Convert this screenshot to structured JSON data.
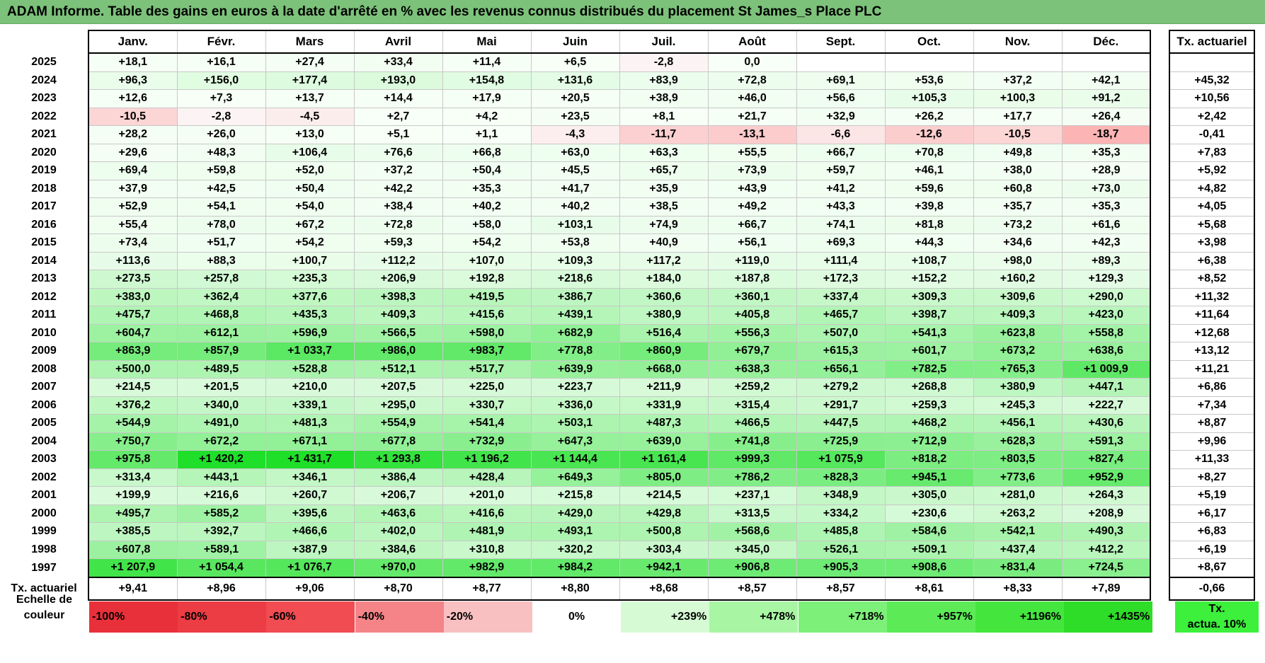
{
  "title": "ADAM Informe. Table des gains en euros à la date d'arrêté en % avec les revenus connus distribués du placement St James_s Place PLC",
  "months": [
    "Janv.",
    "Févr.",
    "Mars",
    "Avril",
    "Mai",
    "Juin",
    "Juil.",
    "Août",
    "Sept.",
    "Oct.",
    "Nov.",
    "Déc."
  ],
  "tx_header": "Tx. actuariel",
  "rows": [
    {
      "year": "2025",
      "vals": [
        "+18,1",
        "+16,1",
        "+27,4",
        "+33,4",
        "+11,4",
        "+6,5",
        "-2,8",
        "0,0",
        "",
        "",
        "",
        ""
      ],
      "tx": ""
    },
    {
      "year": "2024",
      "vals": [
        "+96,3",
        "+156,0",
        "+177,4",
        "+193,0",
        "+154,8",
        "+131,6",
        "+83,9",
        "+72,8",
        "+69,1",
        "+53,6",
        "+37,2",
        "+42,1"
      ],
      "tx": "+45,32"
    },
    {
      "year": "2023",
      "vals": [
        "+12,6",
        "+7,3",
        "+13,7",
        "+14,4",
        "+17,9",
        "+20,5",
        "+38,9",
        "+46,0",
        "+56,6",
        "+105,3",
        "+100,3",
        "+91,2"
      ],
      "tx": "+10,56"
    },
    {
      "year": "2022",
      "vals": [
        "-10,5",
        "-2,8",
        "-4,5",
        "+2,7",
        "+4,2",
        "+23,5",
        "+8,1",
        "+21,7",
        "+32,9",
        "+26,2",
        "+17,7",
        "+26,4"
      ],
      "tx": "+2,42"
    },
    {
      "year": "2021",
      "vals": [
        "+28,2",
        "+26,0",
        "+13,0",
        "+5,1",
        "+1,1",
        "-4,3",
        "-11,7",
        "-13,1",
        "-6,6",
        "-12,6",
        "-10,5",
        "-18,7"
      ],
      "tx": "-0,41"
    },
    {
      "year": "2020",
      "vals": [
        "+29,6",
        "+48,3",
        "+106,4",
        "+76,6",
        "+66,8",
        "+63,0",
        "+63,3",
        "+55,5",
        "+66,7",
        "+70,8",
        "+49,8",
        "+35,3"
      ],
      "tx": "+7,83"
    },
    {
      "year": "2019",
      "vals": [
        "+69,4",
        "+59,8",
        "+52,0",
        "+37,2",
        "+50,4",
        "+45,5",
        "+65,7",
        "+73,9",
        "+59,7",
        "+46,1",
        "+38,0",
        "+28,9"
      ],
      "tx": "+5,92"
    },
    {
      "year": "2018",
      "vals": [
        "+37,9",
        "+42,5",
        "+50,4",
        "+42,2",
        "+35,3",
        "+41,7",
        "+35,9",
        "+43,9",
        "+41,2",
        "+59,6",
        "+60,8",
        "+73,0"
      ],
      "tx": "+4,82"
    },
    {
      "year": "2017",
      "vals": [
        "+52,9",
        "+54,1",
        "+54,0",
        "+38,4",
        "+40,2",
        "+40,2",
        "+38,5",
        "+49,2",
        "+43,3",
        "+39,8",
        "+35,7",
        "+35,3"
      ],
      "tx": "+4,05"
    },
    {
      "year": "2016",
      "vals": [
        "+55,4",
        "+78,0",
        "+67,2",
        "+72,8",
        "+58,0",
        "+103,1",
        "+74,9",
        "+66,7",
        "+74,1",
        "+81,8",
        "+73,2",
        "+61,6"
      ],
      "tx": "+5,68"
    },
    {
      "year": "2015",
      "vals": [
        "+73,4",
        "+51,7",
        "+54,2",
        "+59,3",
        "+54,2",
        "+53,8",
        "+40,9",
        "+56,1",
        "+69,3",
        "+44,3",
        "+34,6",
        "+42,3"
      ],
      "tx": "+3,98"
    },
    {
      "year": "2014",
      "vals": [
        "+113,6",
        "+88,3",
        "+100,7",
        "+112,2",
        "+107,0",
        "+109,3",
        "+117,2",
        "+119,0",
        "+111,4",
        "+108,7",
        "+98,0",
        "+89,3"
      ],
      "tx": "+6,38"
    },
    {
      "year": "2013",
      "vals": [
        "+273,5",
        "+257,8",
        "+235,3",
        "+206,9",
        "+192,8",
        "+218,6",
        "+184,0",
        "+187,8",
        "+172,3",
        "+152,2",
        "+160,2",
        "+129,3"
      ],
      "tx": "+8,52"
    },
    {
      "year": "2012",
      "vals": [
        "+383,0",
        "+362,4",
        "+377,6",
        "+398,3",
        "+419,5",
        "+386,7",
        "+360,6",
        "+360,1",
        "+337,4",
        "+309,3",
        "+309,6",
        "+290,0"
      ],
      "tx": "+11,32"
    },
    {
      "year": "2011",
      "vals": [
        "+475,7",
        "+468,8",
        "+435,3",
        "+409,3",
        "+415,6",
        "+439,1",
        "+380,9",
        "+405,8",
        "+465,7",
        "+398,7",
        "+409,3",
        "+423,0"
      ],
      "tx": "+11,64"
    },
    {
      "year": "2010",
      "vals": [
        "+604,7",
        "+612,1",
        "+596,9",
        "+566,5",
        "+598,0",
        "+682,9",
        "+516,4",
        "+556,3",
        "+507,0",
        "+541,3",
        "+623,8",
        "+558,8"
      ],
      "tx": "+12,68"
    },
    {
      "year": "2009",
      "vals": [
        "+863,9",
        "+857,9",
        "+1 033,7",
        "+986,0",
        "+983,7",
        "+778,8",
        "+860,9",
        "+679,7",
        "+615,3",
        "+601,7",
        "+673,2",
        "+638,6"
      ],
      "tx": "+13,12"
    },
    {
      "year": "2008",
      "vals": [
        "+500,0",
        "+489,5",
        "+528,8",
        "+512,1",
        "+517,7",
        "+639,9",
        "+668,0",
        "+638,3",
        "+656,1",
        "+782,5",
        "+765,3",
        "+1 009,9"
      ],
      "tx": "+11,21"
    },
    {
      "year": "2007",
      "vals": [
        "+214,5",
        "+201,5",
        "+210,0",
        "+207,5",
        "+225,0",
        "+223,7",
        "+211,9",
        "+259,2",
        "+279,2",
        "+268,8",
        "+380,9",
        "+447,1"
      ],
      "tx": "+6,86"
    },
    {
      "year": "2006",
      "vals": [
        "+376,2",
        "+340,0",
        "+339,1",
        "+295,0",
        "+330,7",
        "+336,0",
        "+331,9",
        "+315,4",
        "+291,7",
        "+259,3",
        "+245,3",
        "+222,7"
      ],
      "tx": "+7,34"
    },
    {
      "year": "2005",
      "vals": [
        "+544,9",
        "+491,0",
        "+481,3",
        "+554,9",
        "+541,4",
        "+503,1",
        "+487,3",
        "+466,5",
        "+447,5",
        "+468,2",
        "+456,1",
        "+430,6"
      ],
      "tx": "+8,87"
    },
    {
      "year": "2004",
      "vals": [
        "+750,7",
        "+672,2",
        "+671,1",
        "+677,8",
        "+732,9",
        "+647,3",
        "+639,0",
        "+741,8",
        "+725,9",
        "+712,9",
        "+628,3",
        "+591,3"
      ],
      "tx": "+9,96"
    },
    {
      "year": "2003",
      "vals": [
        "+975,8",
        "+1 420,2",
        "+1 431,7",
        "+1 293,8",
        "+1 196,2",
        "+1 144,4",
        "+1 161,4",
        "+999,3",
        "+1 075,9",
        "+818,2",
        "+803,5",
        "+827,4"
      ],
      "tx": "+11,33"
    },
    {
      "year": "2002",
      "vals": [
        "+313,4",
        "+443,1",
        "+346,1",
        "+386,4",
        "+428,4",
        "+649,3",
        "+805,0",
        "+786,2",
        "+828,3",
        "+945,1",
        "+773,6",
        "+952,9"
      ],
      "tx": "+8,27"
    },
    {
      "year": "2001",
      "vals": [
        "+199,9",
        "+216,6",
        "+260,7",
        "+206,7",
        "+201,0",
        "+215,8",
        "+214,5",
        "+237,1",
        "+348,9",
        "+305,0",
        "+281,0",
        "+264,3"
      ],
      "tx": "+5,19"
    },
    {
      "year": "2000",
      "vals": [
        "+495,7",
        "+585,2",
        "+395,6",
        "+463,6",
        "+416,6",
        "+429,0",
        "+429,8",
        "+313,5",
        "+334,2",
        "+230,6",
        "+263,2",
        "+208,9"
      ],
      "tx": "+6,17"
    },
    {
      "year": "1999",
      "vals": [
        "+385,5",
        "+392,7",
        "+466,6",
        "+402,0",
        "+481,9",
        "+493,1",
        "+500,8",
        "+568,6",
        "+485,8",
        "+584,6",
        "+542,1",
        "+490,3"
      ],
      "tx": "+6,83"
    },
    {
      "year": "1998",
      "vals": [
        "+607,8",
        "+589,1",
        "+387,9",
        "+384,6",
        "+310,8",
        "+320,2",
        "+303,4",
        "+345,0",
        "+526,1",
        "+509,1",
        "+437,4",
        "+412,2"
      ],
      "tx": "+6,19"
    },
    {
      "year": "1997",
      "vals": [
        "+1 207,9",
        "+1 054,4",
        "+1 076,7",
        "+970,0",
        "+982,9",
        "+984,2",
        "+942,1",
        "+906,8",
        "+905,3",
        "+908,6",
        "+831,4",
        "+724,5"
      ],
      "tx": "+8,67"
    }
  ],
  "footer": {
    "label": "Tx. actuariel",
    "vals": [
      "+9,41",
      "+8,96",
      "+9,06",
      "+8,70",
      "+8,77",
      "+8,80",
      "+8,68",
      "+8,57",
      "+8,57",
      "+8,61",
      "+8,33",
      "+7,89"
    ],
    "tx": "-0,66"
  },
  "scale": {
    "label_line1": "Echelle de",
    "label_line2": "couleur",
    "items": [
      {
        "text": "-100%",
        "color": "#e8303a",
        "align": "left"
      },
      {
        "text": "-80%",
        "color": "#ec3c44",
        "align": "left"
      },
      {
        "text": "-60%",
        "color": "#f04c52",
        "align": "left"
      },
      {
        "text": "-40%",
        "color": "#f48488",
        "align": "left"
      },
      {
        "text": "-20%",
        "color": "#f9c0c2",
        "align": "left"
      },
      {
        "text": "0%",
        "color": "#ffffff",
        "align": "center"
      },
      {
        "text": "+239%",
        "color": "#d6fbd4",
        "align": "right"
      },
      {
        "text": "+478%",
        "color": "#a8f5a4",
        "align": "right"
      },
      {
        "text": "+718%",
        "color": "#7df079",
        "align": "right"
      },
      {
        "text": "+957%",
        "color": "#5ceb57",
        "align": "right"
      },
      {
        "text": "+1196%",
        "color": "#44e63e",
        "align": "right"
      },
      {
        "text": "+1435%",
        "color": "#2edd28",
        "align": "right"
      }
    ],
    "tx_line1": "Tx.",
    "tx_line2": "actua. 10%"
  }
}
